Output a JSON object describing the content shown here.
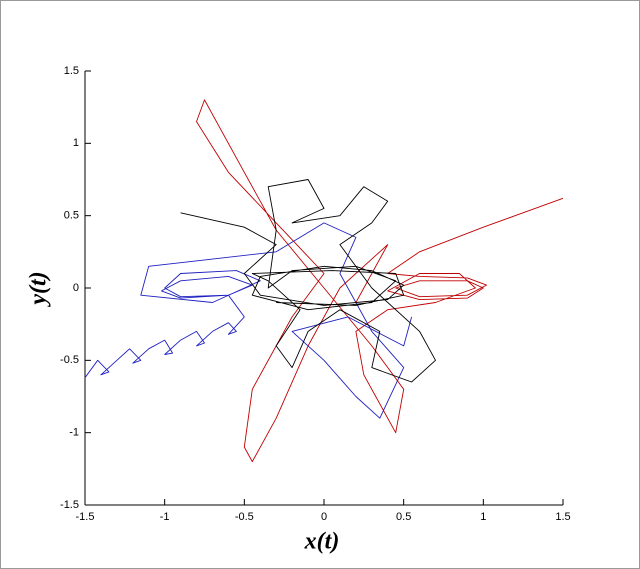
{
  "chart_data": {
    "type": "line",
    "xlabel": "x(t)",
    "ylabel": "y(t)",
    "xlim": [
      -1.5,
      1.5
    ],
    "ylim": [
      -1.5,
      1.5
    ],
    "xticks": [
      -1.5,
      -1,
      -0.5,
      0,
      0.5,
      1,
      1.5
    ],
    "yticks": [
      -1.5,
      -1,
      -0.5,
      0,
      0.5,
      1,
      1.5
    ],
    "series": [
      {
        "color": "#c00000",
        "x": [
          1.5,
          1.0,
          0.6,
          0.4,
          0.6,
          0.9,
          1.02,
          0.9,
          0.6,
          0.45,
          0.6,
          0.9,
          1.0,
          0.9,
          0.6,
          0.4,
          0.6,
          0.85,
          0.95,
          0.7,
          0.4,
          0.2,
          0.25,
          0.45,
          0.5,
          0.3,
          0.0,
          -0.3,
          -0.5,
          -0.75,
          -0.8,
          -0.6,
          -0.3,
          0.0,
          -0.2,
          -0.45,
          -0.5,
          -0.45,
          -0.3,
          -0.1,
          0.1,
          0.3,
          0.4,
          0.2
        ],
        "y": [
          0.62,
          0.42,
          0.25,
          0.1,
          0.08,
          0.07,
          0.02,
          -0.05,
          -0.06,
          0,
          0.05,
          0.05,
          0,
          -0.07,
          -0.08,
          -0.02,
          0.1,
          0.1,
          0.0,
          -0.1,
          -0.15,
          -0.3,
          -0.6,
          -1.0,
          -0.7,
          -0.4,
          0.0,
          0.4,
          0.8,
          1.3,
          1.15,
          0.8,
          0.45,
          0.1,
          -0.2,
          -0.7,
          -1.1,
          -1.2,
          -0.9,
          -0.4,
          0.0,
          0.2,
          0.3,
          -0.1
        ]
      },
      {
        "color": "#2020c0",
        "x": [
          -1.5,
          -1.42,
          -1.35,
          -1.4,
          -1.3,
          -1.22,
          -1.15,
          -1.2,
          -1.1,
          -1.0,
          -0.95,
          -1.0,
          -0.9,
          -0.8,
          -0.75,
          -0.8,
          -0.7,
          -0.6,
          -0.55,
          -0.6,
          -0.5,
          -0.6,
          -0.9,
          -1.02,
          -0.9,
          -0.6,
          -0.45,
          -0.6,
          -0.9,
          -1.0,
          -0.9,
          -0.55,
          -0.4,
          -0.7,
          -1.15,
          -1.1,
          -0.7,
          -0.3,
          0.0,
          0.2,
          0.1,
          0.3,
          0.5,
          0.35,
          0.2,
          0.0,
          -0.2,
          0.15,
          0.5,
          0.55
        ],
        "y": [
          -0.62,
          -0.5,
          -0.58,
          -0.6,
          -0.5,
          -0.42,
          -0.5,
          -0.52,
          -0.42,
          -0.36,
          -0.45,
          -0.46,
          -0.36,
          -0.3,
          -0.38,
          -0.4,
          -0.3,
          -0.24,
          -0.3,
          -0.32,
          -0.2,
          -0.05,
          -0.07,
          -0.02,
          0.05,
          0.08,
          0.02,
          -0.05,
          -0.06,
          0.0,
          0.1,
          0.12,
          0.05,
          -0.1,
          -0.05,
          0.15,
          0.2,
          0.25,
          0.45,
          0.35,
          0.1,
          -0.3,
          -0.55,
          -0.9,
          -0.75,
          -0.5,
          -0.3,
          -0.2,
          -0.4,
          -0.2
        ]
      },
      {
        "color": "#000000",
        "x": [
          -0.9,
          -0.5,
          -0.3,
          -0.5,
          -0.4,
          0,
          0.4,
          0.5,
          0.3,
          0,
          -0.4,
          -0.45,
          -0.1,
          0.3,
          0.45,
          0.2,
          -0.2,
          -0.35,
          -0.3,
          -0.35,
          -0.1,
          0.0,
          -0.2,
          0.1,
          0.25,
          0.4,
          0.3,
          0.1,
          0.3,
          0.6,
          0.7,
          0.55,
          0.3,
          0.35,
          0.1,
          -0.1,
          -0.2,
          -0.3,
          -0.15,
          -0.35,
          -0.45,
          0.05,
          0.45,
          0.5,
          0.2,
          -0.3
        ],
        "y": [
          0.52,
          0.42,
          0.3,
          0.1,
          -0.05,
          -0.12,
          -0.08,
          0.02,
          0.12,
          0.15,
          0.08,
          -0.05,
          -0.15,
          -0.1,
          0.05,
          0.15,
          0.12,
          0.0,
          0.4,
          0.7,
          0.75,
          0.55,
          0.45,
          0.5,
          0.7,
          0.6,
          0.45,
          0.3,
          0.0,
          -0.3,
          -0.5,
          -0.65,
          -0.55,
          -0.3,
          -0.15,
          -0.3,
          -0.55,
          -0.4,
          -0.15,
          0.05,
          0.1,
          0.12,
          0.1,
          -0.05,
          -0.12,
          -0.1
        ]
      }
    ]
  }
}
